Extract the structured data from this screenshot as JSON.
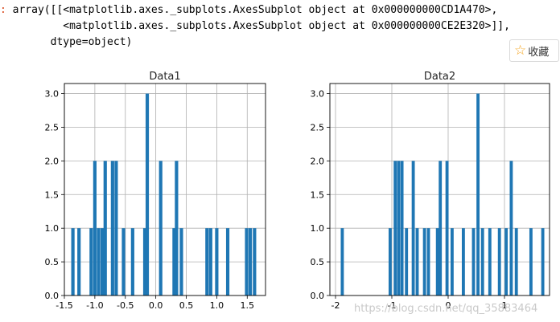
{
  "output": {
    "prompt": ":",
    "lines": [
      "array([[<matplotlib.axes._subplots.AxesSubplot object at 0x000000000CD1A470>,",
      "        <matplotlib.axes._subplots.AxesSubplot object at 0x000000000CE2E320>]],",
      "      dtype=object)"
    ]
  },
  "favorite": {
    "icon": "star-outline-icon",
    "label": "收藏",
    "color": "#f5a623"
  },
  "watermark": "https://blog.csdn.net/qq_35883464",
  "chart_data": [
    {
      "type": "bar",
      "title": "Data1",
      "bar_color": "#1f77b4",
      "grid": true,
      "xlim": [
        -1.5,
        1.8
      ],
      "ylim": [
        0,
        3.15
      ],
      "xticks": [
        "-1.5",
        "-1.0",
        "-0.5",
        "0.0",
        "0.5",
        "1.0",
        "1.5"
      ],
      "yticks": [
        "0.0",
        "0.5",
        "1.0",
        "1.5",
        "2.0",
        "2.5",
        "3.0"
      ],
      "bars": [
        [
          -1.36,
          1
        ],
        [
          -1.26,
          1
        ],
        [
          -1.06,
          1
        ],
        [
          -1.0,
          2
        ],
        [
          -0.94,
          1
        ],
        [
          -0.88,
          1
        ],
        [
          -0.83,
          2
        ],
        [
          -0.71,
          2
        ],
        [
          -0.65,
          2
        ],
        [
          -0.53,
          1
        ],
        [
          -0.38,
          1
        ],
        [
          -0.18,
          1
        ],
        [
          -0.14,
          3
        ],
        [
          0.08,
          2
        ],
        [
          0.3,
          1
        ],
        [
          0.34,
          2
        ],
        [
          0.42,
          1
        ],
        [
          0.84,
          1
        ],
        [
          0.9,
          1
        ],
        [
          1.0,
          1
        ],
        [
          1.18,
          1
        ],
        [
          1.49,
          1
        ],
        [
          1.55,
          1
        ],
        [
          1.62,
          1
        ]
      ]
    },
    {
      "type": "bar",
      "title": "Data2",
      "bar_color": "#1f77b4",
      "grid": true,
      "xlim": [
        -2.1,
        1.8
      ],
      "ylim": [
        0,
        3.15
      ],
      "xticks": [
        "-2",
        "-1",
        "0",
        "1"
      ],
      "yticks": [
        "0.0",
        "0.5",
        "1.0",
        "1.5",
        "2.0",
        "2.5",
        "3.0"
      ],
      "bars": [
        [
          -1.88,
          1
        ],
        [
          -1.03,
          1
        ],
        [
          -0.94,
          2
        ],
        [
          -0.88,
          2
        ],
        [
          -0.82,
          2
        ],
        [
          -0.74,
          1
        ],
        [
          -0.62,
          2
        ],
        [
          -0.55,
          1
        ],
        [
          -0.42,
          1
        ],
        [
          -0.35,
          1
        ],
        [
          -0.19,
          1
        ],
        [
          -0.14,
          2
        ],
        [
          -0.02,
          2
        ],
        [
          0.07,
          1
        ],
        [
          0.27,
          1
        ],
        [
          0.45,
          1
        ],
        [
          0.53,
          3
        ],
        [
          0.61,
          1
        ],
        [
          0.74,
          1
        ],
        [
          0.91,
          1
        ],
        [
          1.03,
          1
        ],
        [
          1.12,
          2
        ],
        [
          1.21,
          1
        ],
        [
          1.47,
          1
        ],
        [
          1.68,
          1
        ]
      ]
    }
  ]
}
